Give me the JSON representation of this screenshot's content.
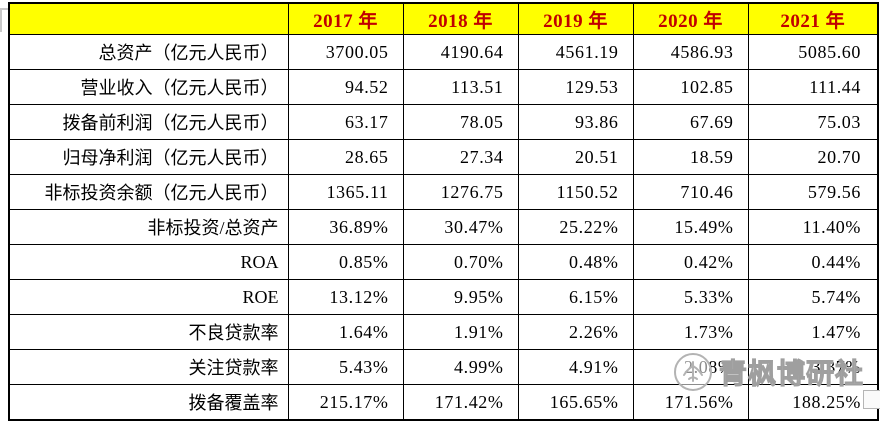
{
  "colors": {
    "header_bg": "#ffff00",
    "header_text": "#c00000",
    "body_text": "#000000",
    "border": "#000000",
    "watermark_gray": "#b0b0b0"
  },
  "watermark": {
    "text": "青枫博研社",
    "logo": "maple-leaf-badge"
  },
  "chart_data": {
    "type": "table",
    "columns": [
      "",
      "2017 年",
      "2018 年",
      "2019 年",
      "2020 年",
      "2021 年"
    ],
    "rows": [
      {
        "label": "总资产（亿元人民币）",
        "values": [
          "3700.05",
          "4190.64",
          "4561.19",
          "4586.93",
          "5085.60"
        ]
      },
      {
        "label": "营业收入（亿元人民币）",
        "values": [
          "94.52",
          "113.51",
          "129.53",
          "102.85",
          "111.44"
        ]
      },
      {
        "label": "拨备前利润（亿元人民币）",
        "values": [
          "63.17",
          "78.05",
          "93.86",
          "67.69",
          "75.03"
        ]
      },
      {
        "label": "归母净利润（亿元人民币）",
        "values": [
          "28.65",
          "27.34",
          "20.51",
          "18.59",
          "20.70"
        ]
      },
      {
        "label": "非标投资余额（亿元人民币）",
        "values": [
          "1365.11",
          "1276.75",
          "1150.52",
          "710.46",
          "579.56"
        ]
      },
      {
        "label": "非标投资/总资产",
        "values": [
          "36.89%",
          "30.47%",
          "25.22%",
          "15.49%",
          "11.40%"
        ]
      },
      {
        "label": "ROA",
        "values": [
          "0.85%",
          "0.70%",
          "0.48%",
          "0.42%",
          "0.44%"
        ]
      },
      {
        "label": "ROE",
        "values": [
          "13.12%",
          "9.95%",
          "6.15%",
          "5.33%",
          "5.74%"
        ]
      },
      {
        "label": "不良贷款率",
        "values": [
          "1.64%",
          "1.91%",
          "2.26%",
          "1.73%",
          "1.47%"
        ]
      },
      {
        "label": "关注贷款率",
        "values": [
          "5.43%",
          "4.99%",
          "4.91%",
          "2.08%",
          "3.37%"
        ]
      },
      {
        "label": "拨备覆盖率",
        "values": [
          "215.17%",
          "171.42%",
          "165.65%",
          "171.56%",
          "188.25%"
        ]
      }
    ]
  }
}
